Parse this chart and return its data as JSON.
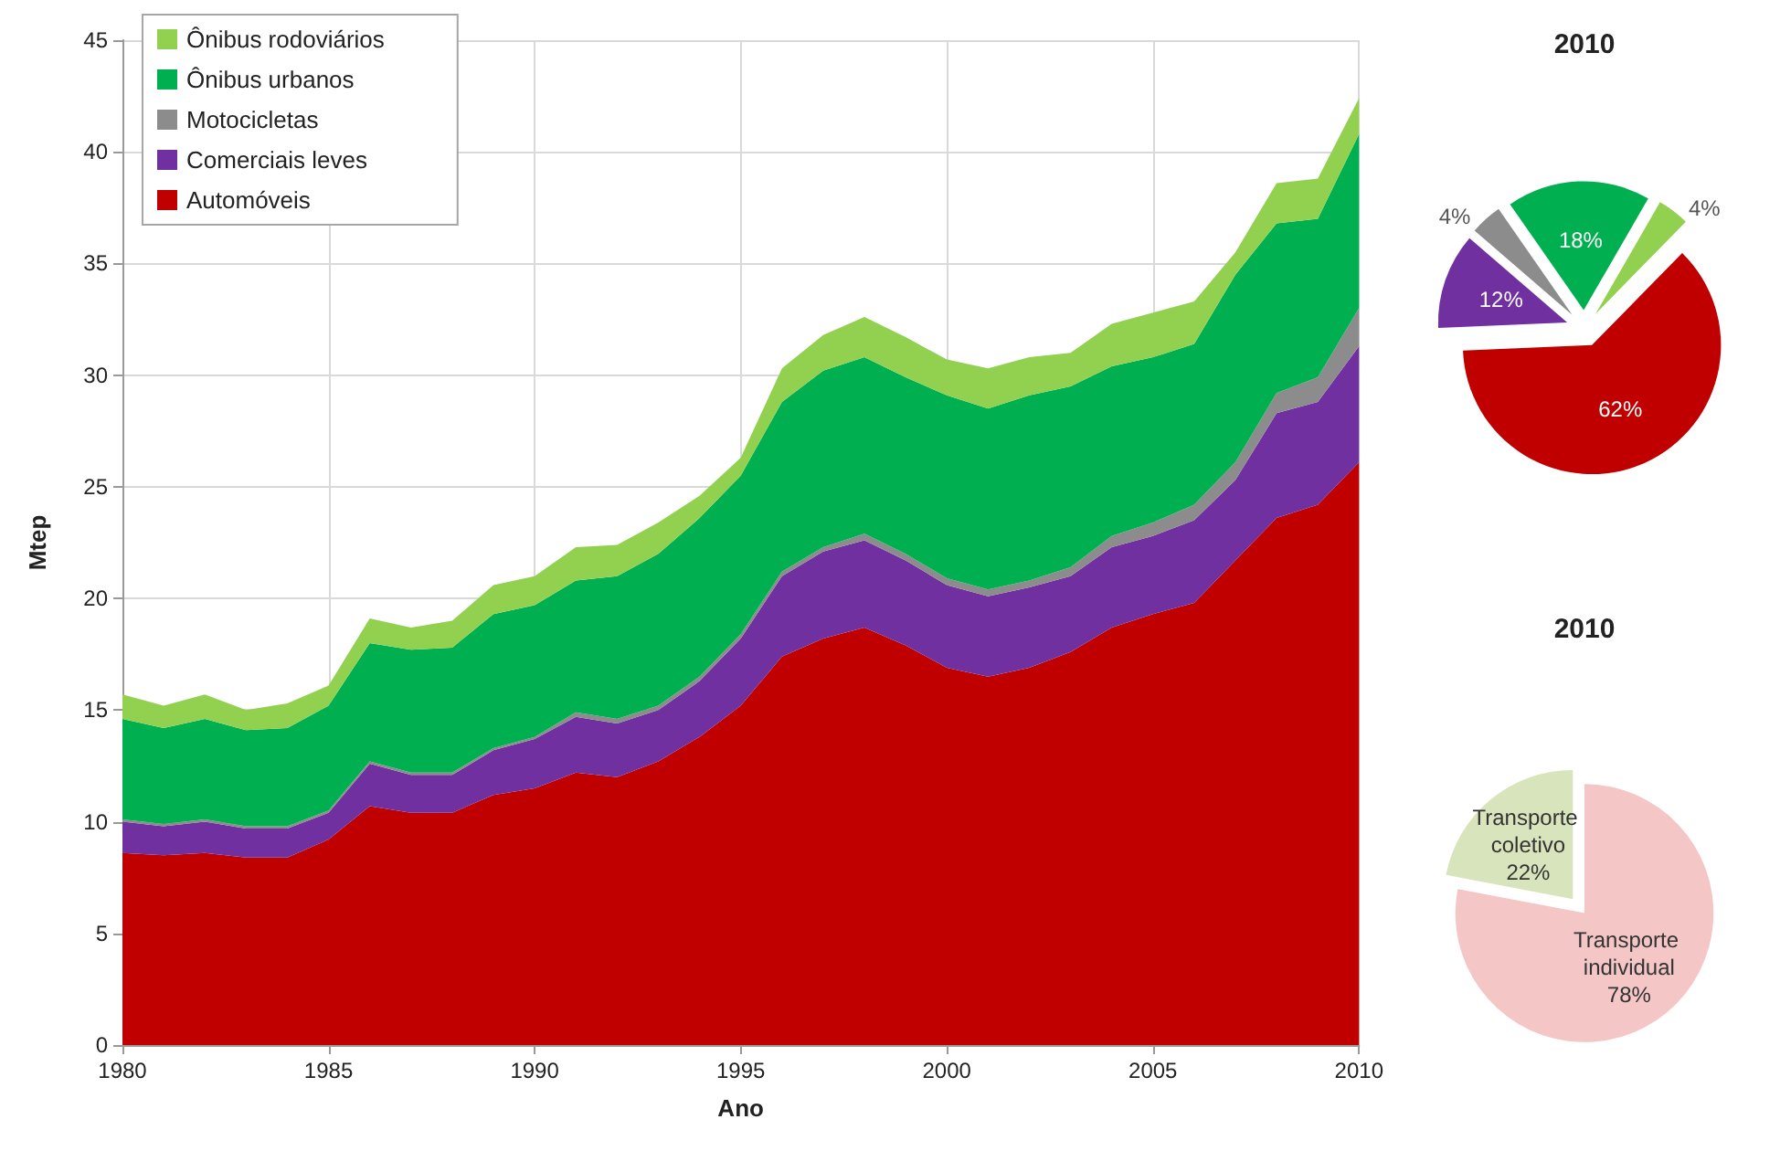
{
  "chart_data": [
    {
      "type": "area",
      "stacked": true,
      "xlabel": "Ano",
      "ylabel": "Mtep",
      "x": [
        1980,
        1981,
        1982,
        1983,
        1984,
        1985,
        1986,
        1987,
        1988,
        1989,
        1990,
        1991,
        1992,
        1993,
        1994,
        1995,
        1996,
        1997,
        1998,
        1999,
        2000,
        2001,
        2002,
        2003,
        2004,
        2005,
        2006,
        2007,
        2008,
        2009,
        2010
      ],
      "xlim": [
        1980,
        2010
      ],
      "xticks": [
        1980,
        1985,
        1990,
        1995,
        2000,
        2005,
        2010
      ],
      "ylim": [
        0,
        45
      ],
      "yticks": [
        0,
        5,
        10,
        15,
        20,
        25,
        30,
        35,
        40,
        45
      ],
      "grid": true,
      "legend": "top left",
      "series": [
        {
          "name": "Automóveis",
          "color": "#c00000",
          "values": [
            8.6,
            8.5,
            8.6,
            8.4,
            8.4,
            9.2,
            10.7,
            10.4,
            10.4,
            11.2,
            11.5,
            12.2,
            12.0,
            12.7,
            13.8,
            15.2,
            17.4,
            18.2,
            18.7,
            17.9,
            16.9,
            16.5,
            16.9,
            17.6,
            18.7,
            19.3,
            19.8,
            21.7,
            23.6,
            24.2,
            26.1
          ]
        },
        {
          "name": "Comerciais leves",
          "color": "#7030a0",
          "values": [
            1.4,
            1.3,
            1.4,
            1.3,
            1.3,
            1.2,
            1.9,
            1.7,
            1.7,
            2.0,
            2.2,
            2.5,
            2.4,
            2.3,
            2.5,
            3.0,
            3.6,
            3.9,
            3.9,
            3.8,
            3.7,
            3.6,
            3.6,
            3.4,
            3.6,
            3.5,
            3.7,
            3.6,
            4.7,
            4.6,
            5.2
          ]
        },
        {
          "name": "Motocicletas",
          "color": "#8c8c8c",
          "values": [
            0.1,
            0.1,
            0.1,
            0.1,
            0.1,
            0.1,
            0.1,
            0.1,
            0.1,
            0.1,
            0.1,
            0.2,
            0.2,
            0.2,
            0.2,
            0.2,
            0.2,
            0.2,
            0.3,
            0.3,
            0.3,
            0.3,
            0.3,
            0.4,
            0.5,
            0.6,
            0.7,
            0.8,
            0.9,
            1.1,
            1.7
          ]
        },
        {
          "name": "Ônibus urbanos",
          "color": "#00b050",
          "values": [
            4.5,
            4.3,
            4.5,
            4.3,
            4.4,
            4.7,
            5.3,
            5.5,
            5.6,
            6.0,
            5.9,
            5.9,
            6.4,
            6.8,
            7.1,
            7.1,
            7.6,
            7.9,
            7.9,
            7.9,
            8.2,
            8.1,
            8.3,
            8.1,
            7.6,
            7.4,
            7.2,
            8.4,
            7.6,
            7.1,
            7.8
          ]
        },
        {
          "name": "Ônibus rodoviários",
          "color": "#92d050",
          "values": [
            1.1,
            1.0,
            1.1,
            0.9,
            1.1,
            0.9,
            1.1,
            1.0,
            1.2,
            1.3,
            1.3,
            1.5,
            1.4,
            1.4,
            1.0,
            0.8,
            1.5,
            1.6,
            1.8,
            1.8,
            1.6,
            1.8,
            1.7,
            1.5,
            1.9,
            2.0,
            1.9,
            1.0,
            1.8,
            1.8,
            1.6
          ]
        }
      ]
    },
    {
      "type": "pie",
      "title": "2010",
      "categories": [
        null,
        null,
        null,
        null,
        null
      ],
      "values": [
        4,
        62,
        12,
        4,
        18
      ],
      "value_labels": [
        "4%",
        "62%",
        "12%",
        "4%",
        "18%"
      ],
      "colors": [
        "#92d050",
        "#c00000",
        "#7030a0",
        "#8c8c8c",
        "#00b050"
      ]
    },
    {
      "type": "pie",
      "title": "2010",
      "categories": [
        "Transporte individual",
        "Transporte coletivo"
      ],
      "values": [
        78,
        22
      ],
      "value_labels": [
        "78%",
        "22%"
      ],
      "colors": [
        "#f4c6c6",
        "#d8e4bc"
      ]
    }
  ]
}
